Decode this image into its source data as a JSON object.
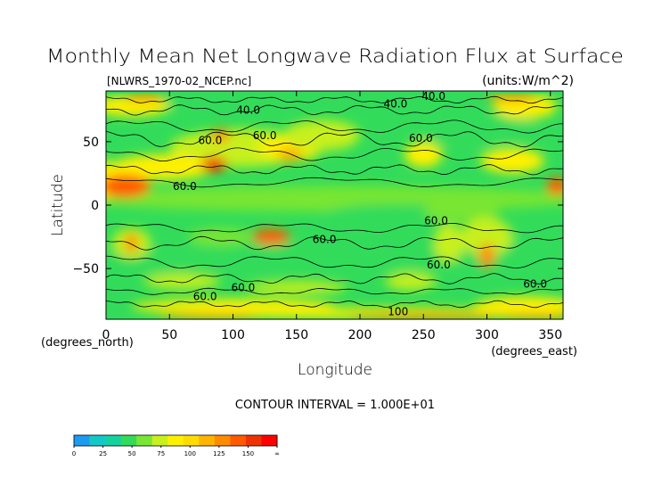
{
  "chart_data": {
    "type": "heatmap",
    "title": "Monthly Mean Net Longwave Radiation Flux at Surface",
    "file_label": "[NLWRS_1970-02_NCEP.nc]",
    "units_label": "(units:W/m^2)",
    "xlabel": "Longitude",
    "ylabel": "Latitude",
    "x_unit_label": "(degrees_east)",
    "y_unit_label": "(degrees_north)",
    "xlim": [
      0,
      360
    ],
    "ylim": [
      -90,
      90
    ],
    "x_ticks": [
      0,
      50,
      100,
      150,
      200,
      250,
      300,
      350
    ],
    "y_ticks": [
      50,
      0,
      -50
    ],
    "contour_interval_label": "CONTOUR INTERVAL = 1.000E+01",
    "contour_labels": [
      {
        "text": "40.0",
        "lon": 112,
        "lat": 72
      },
      {
        "text": "40.0",
        "lon": 228,
        "lat": 77
      },
      {
        "text": "40.0",
        "lon": 258,
        "lat": 83
      },
      {
        "text": "60.0",
        "lon": 82,
        "lat": 48
      },
      {
        "text": "60.0",
        "lon": 125,
        "lat": 52
      },
      {
        "text": "60.0",
        "lon": 248,
        "lat": 50
      },
      {
        "text": "60.0",
        "lon": 62,
        "lat": 12
      },
      {
        "text": "60.0",
        "lon": 172,
        "lat": -30
      },
      {
        "text": "60.0",
        "lon": 260,
        "lat": -15
      },
      {
        "text": "60.0",
        "lon": 262,
        "lat": -50
      },
      {
        "text": "60.0",
        "lon": 108,
        "lat": -68
      },
      {
        "text": "60.0",
        "lon": 78,
        "lat": -75
      },
      {
        "text": "60.0",
        "lon": 338,
        "lat": -65
      },
      {
        "text": "100",
        "lon": 230,
        "lat": -87
      }
    ],
    "colorbar": {
      "ticks": [
        "0",
        "25",
        "50",
        "75",
        "100",
        "125",
        "150",
        "∞"
      ],
      "colors": [
        "#1e9bf0",
        "#14c8c8",
        "#14d2a0",
        "#32dc5a",
        "#78e632",
        "#c8f01e",
        "#fff000",
        "#ffdc00",
        "#ffb400",
        "#ff8c00",
        "#ff5a00",
        "#f03200",
        "#ff0000"
      ]
    }
  }
}
